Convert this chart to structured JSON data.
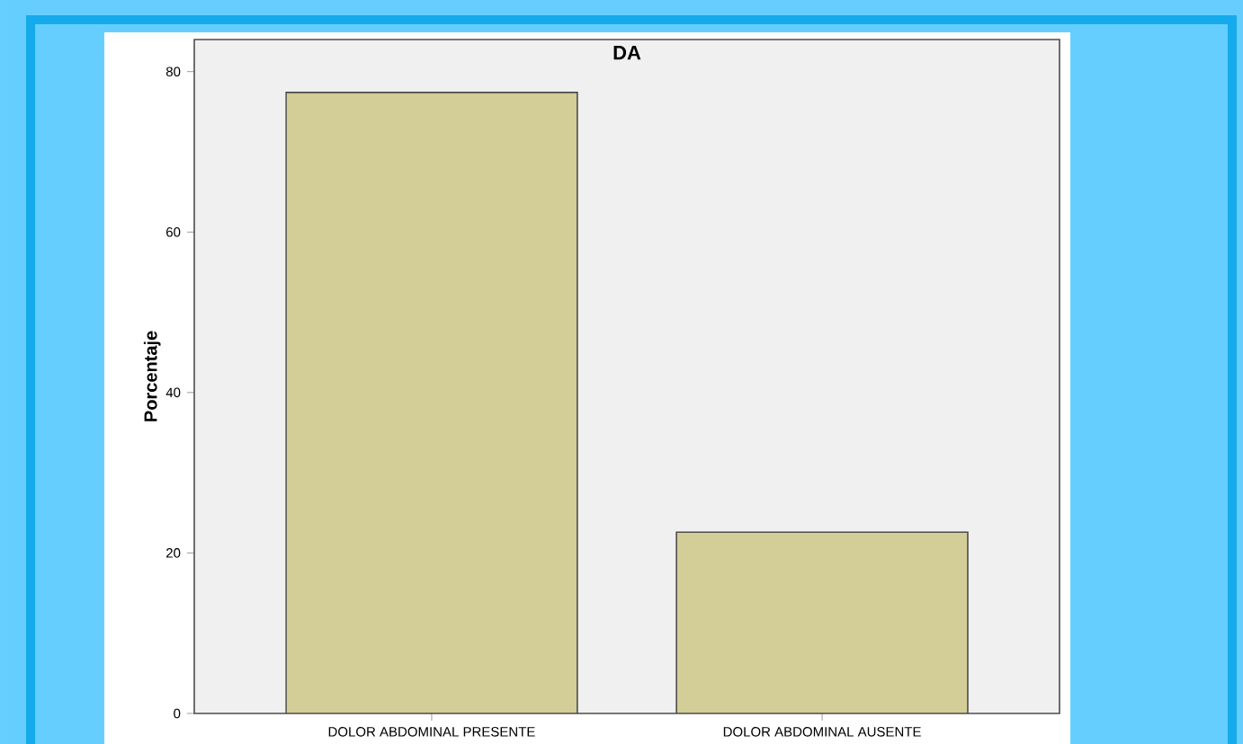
{
  "chart_data": {
    "type": "bar",
    "title": "DA",
    "ylabel": "Porcentaje",
    "categories": [
      "DOLOR ABDOMINAL PRESENTE",
      "DOLOR ABDOMINAL AUSENTE"
    ],
    "values": [
      77.4,
      22.6
    ],
    "color": "#d3ce97",
    "ylim": [
      0,
      84
    ],
    "yticks": [
      0,
      20,
      40,
      60,
      80
    ]
  }
}
